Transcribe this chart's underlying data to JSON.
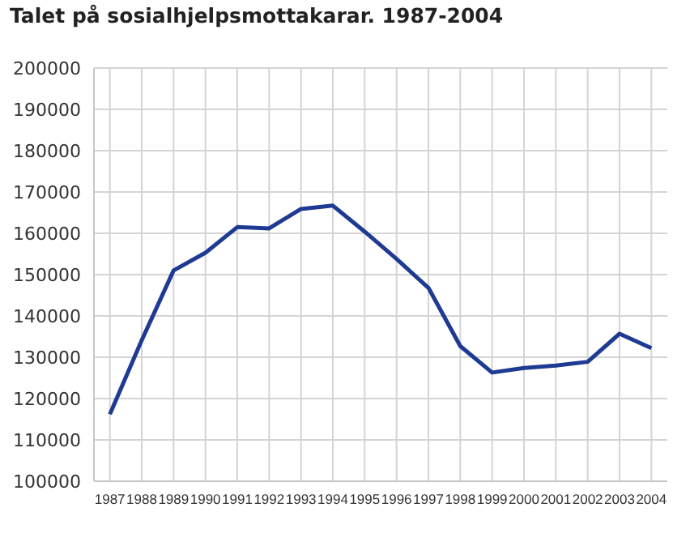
{
  "chart_data": {
    "type": "line",
    "title": "Talet på sosialhjelpsmottakarar. 1987-2004",
    "x": [
      1987,
      1988,
      1989,
      1990,
      1991,
      1992,
      1993,
      1994,
      1995,
      1996,
      1997,
      1998,
      1999,
      2000,
      2001,
      2002,
      2003,
      2004
    ],
    "series": [
      {
        "color": "#1f3a93",
        "values": [
          116200,
          134100,
          151000,
          155300,
          161500,
          161200,
          165900,
          166700,
          160400,
          153800,
          146800,
          132700,
          126300,
          127400,
          128000,
          128900,
          135700,
          132200
        ]
      }
    ],
    "xlim": [
      1986.5,
      2004.5
    ],
    "xticks": [
      1987,
      1988,
      1989,
      1990,
      1991,
      1992,
      1993,
      1994,
      1995,
      1996,
      1997,
      1998,
      1999,
      2000,
      2001,
      2002,
      2003,
      2004
    ],
    "ylim": [
      100000,
      200000
    ],
    "yticks": [
      100000,
      110000,
      120000,
      130000,
      140000,
      150000,
      160000,
      170000,
      180000,
      190000,
      200000
    ],
    "grid": true,
    "legend": false,
    "marker": "none",
    "line_style": "solid"
  }
}
